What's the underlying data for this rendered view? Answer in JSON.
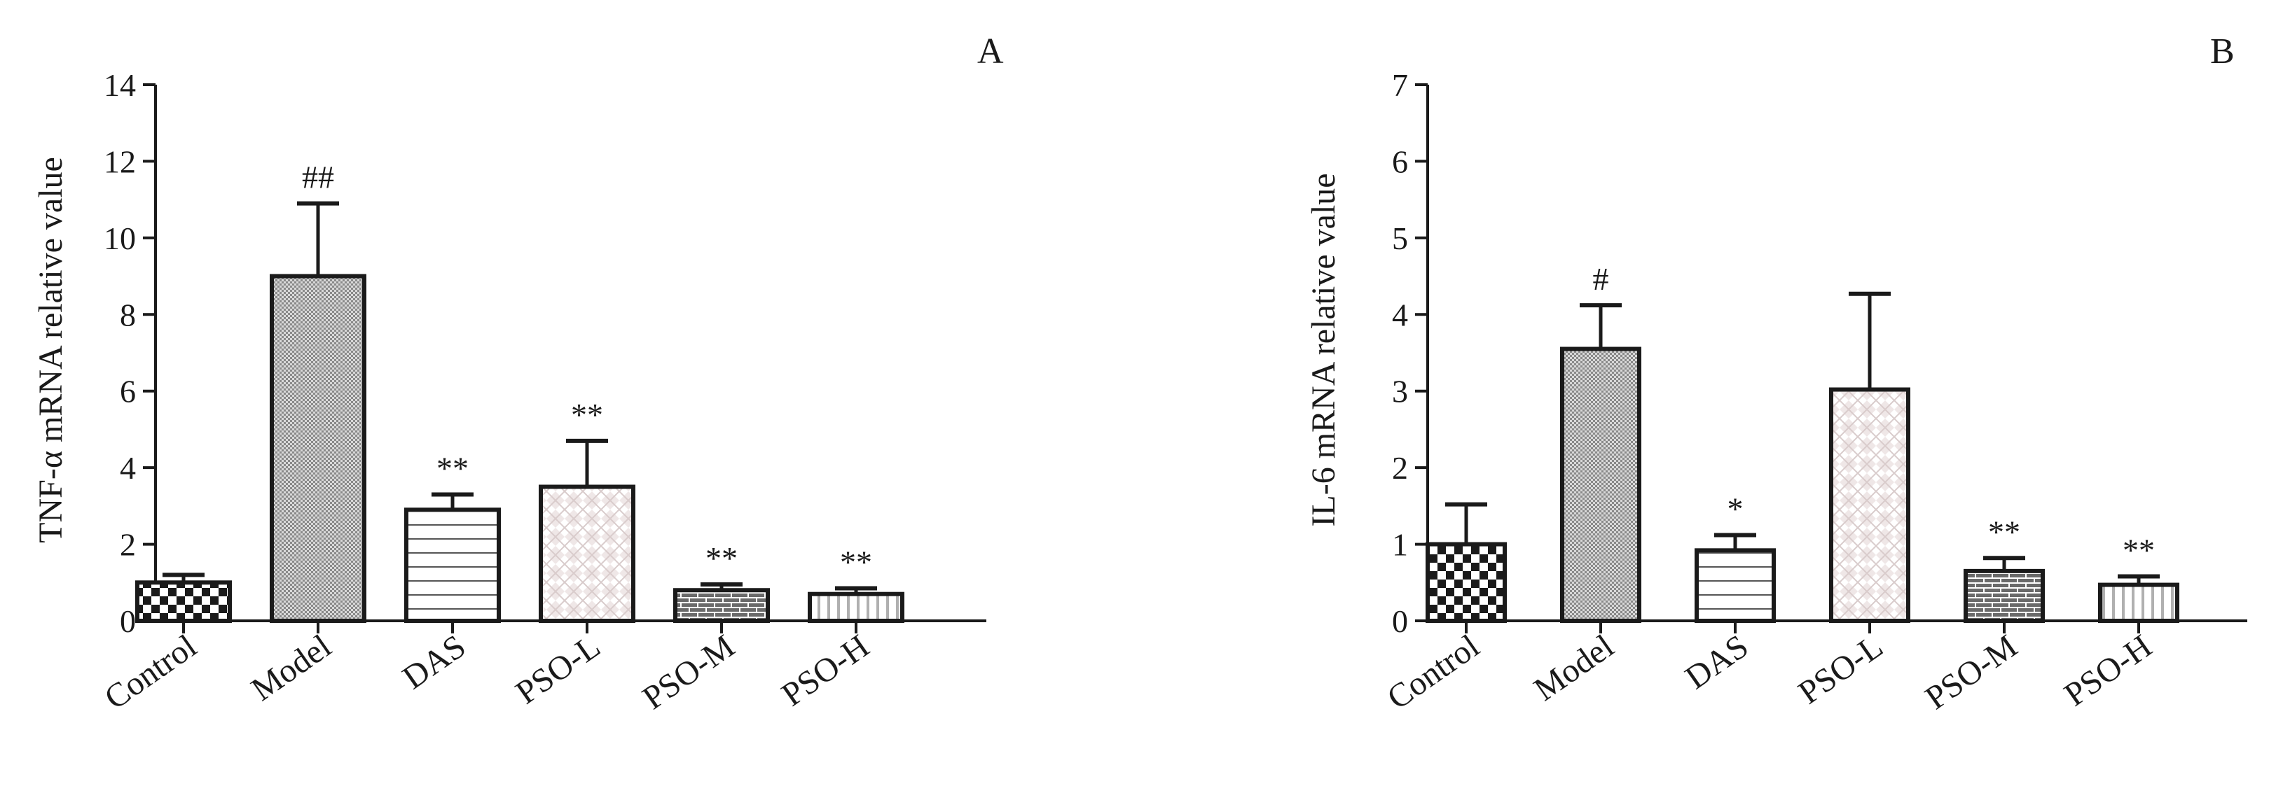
{
  "chart_data": [
    {
      "type": "bar",
      "panel_label": "A",
      "ylabel": "TNF-α mRNA relative value",
      "categories": [
        "Control",
        "Model",
        "DAS",
        "PSO-L",
        "PSO-M",
        "PSO-H"
      ],
      "values": [
        1.0,
        9.0,
        2.9,
        3.5,
        0.8,
        0.7
      ],
      "error_upper": [
        1.2,
        10.9,
        3.3,
        4.7,
        0.95,
        0.85
      ],
      "annotations": [
        "",
        "##",
        "**",
        "**",
        "**",
        "**"
      ],
      "ylim": [
        0,
        14
      ],
      "yticks": [
        0,
        2,
        4,
        6,
        8,
        10,
        12,
        14
      ],
      "grid": false,
      "patterns": [
        "checker",
        "fine-dots",
        "horizontal-lines",
        "diamond-lattice",
        "brick",
        "vertical-stripes"
      ]
    },
    {
      "type": "bar",
      "panel_label": "B",
      "ylabel": "IL-6 mRNA relative value",
      "categories": [
        "Control",
        "Model",
        "DAS",
        "PSO-L",
        "PSO-M",
        "PSO-H"
      ],
      "values": [
        1.0,
        3.55,
        0.92,
        3.02,
        0.65,
        0.47
      ],
      "error_upper": [
        1.52,
        4.12,
        1.12,
        4.27,
        0.82,
        0.58
      ],
      "annotations": [
        "",
        "#",
        "*",
        "",
        "**",
        "**"
      ],
      "ylim": [
        0,
        7
      ],
      "yticks": [
        0,
        1,
        2,
        3,
        4,
        5,
        6,
        7
      ],
      "grid": false,
      "patterns": [
        "checker",
        "fine-dots",
        "horizontal-lines",
        "diamond-lattice",
        "brick",
        "vertical-stripes"
      ]
    }
  ]
}
